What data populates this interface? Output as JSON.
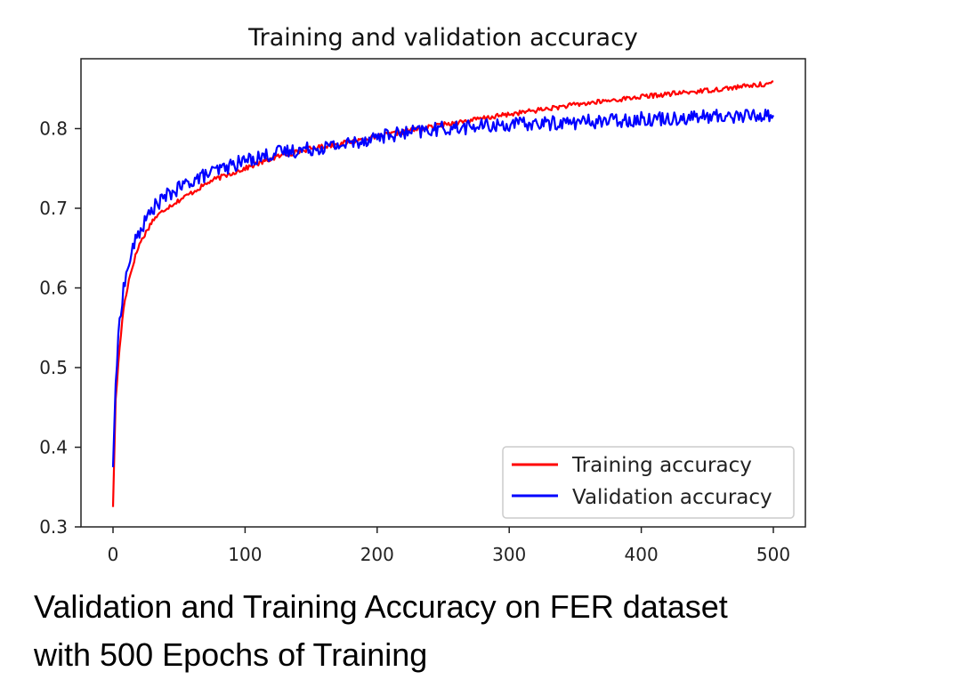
{
  "chart_data": {
    "type": "line",
    "title": "Training and validation accuracy",
    "xlabel": "",
    "ylabel": "",
    "xlim": [
      0,
      500
    ],
    "ylim": [
      0.3,
      0.87
    ],
    "xticks": [
      0,
      100,
      200,
      300,
      400,
      500
    ],
    "yticks": [
      0.3,
      0.4,
      0.5,
      0.6,
      0.7,
      0.8
    ],
    "grid": false,
    "legend_position": "lower-right",
    "series": [
      {
        "name": "Training accuracy",
        "color": "#ff0000",
        "noise": 0.003,
        "x": [
          0,
          2,
          5,
          8,
          12,
          16,
          20,
          25,
          30,
          40,
          50,
          60,
          75,
          100,
          125,
          150,
          175,
          200,
          250,
          300,
          350,
          400,
          450,
          500
        ],
        "y": [
          0.325,
          0.46,
          0.525,
          0.575,
          0.61,
          0.635,
          0.655,
          0.67,
          0.685,
          0.7,
          0.71,
          0.72,
          0.735,
          0.75,
          0.765,
          0.775,
          0.782,
          0.79,
          0.805,
          0.818,
          0.83,
          0.84,
          0.848,
          0.857
        ]
      },
      {
        "name": "Validation accuracy",
        "color": "#0000ff",
        "noise": 0.009,
        "x": [
          0,
          2,
          5,
          8,
          12,
          16,
          20,
          25,
          30,
          40,
          50,
          60,
          75,
          100,
          125,
          150,
          175,
          200,
          225,
          250,
          300,
          350,
          400,
          450,
          500
        ],
        "y": [
          0.375,
          0.48,
          0.56,
          0.6,
          0.63,
          0.655,
          0.67,
          0.685,
          0.7,
          0.715,
          0.725,
          0.735,
          0.745,
          0.76,
          0.77,
          0.775,
          0.78,
          0.79,
          0.795,
          0.8,
          0.805,
          0.808,
          0.812,
          0.815,
          0.817
        ]
      }
    ]
  },
  "caption": {
    "line1": "Validation and Training Accuracy on FER dataset",
    "line2": "with 500 Epochs of Training"
  }
}
